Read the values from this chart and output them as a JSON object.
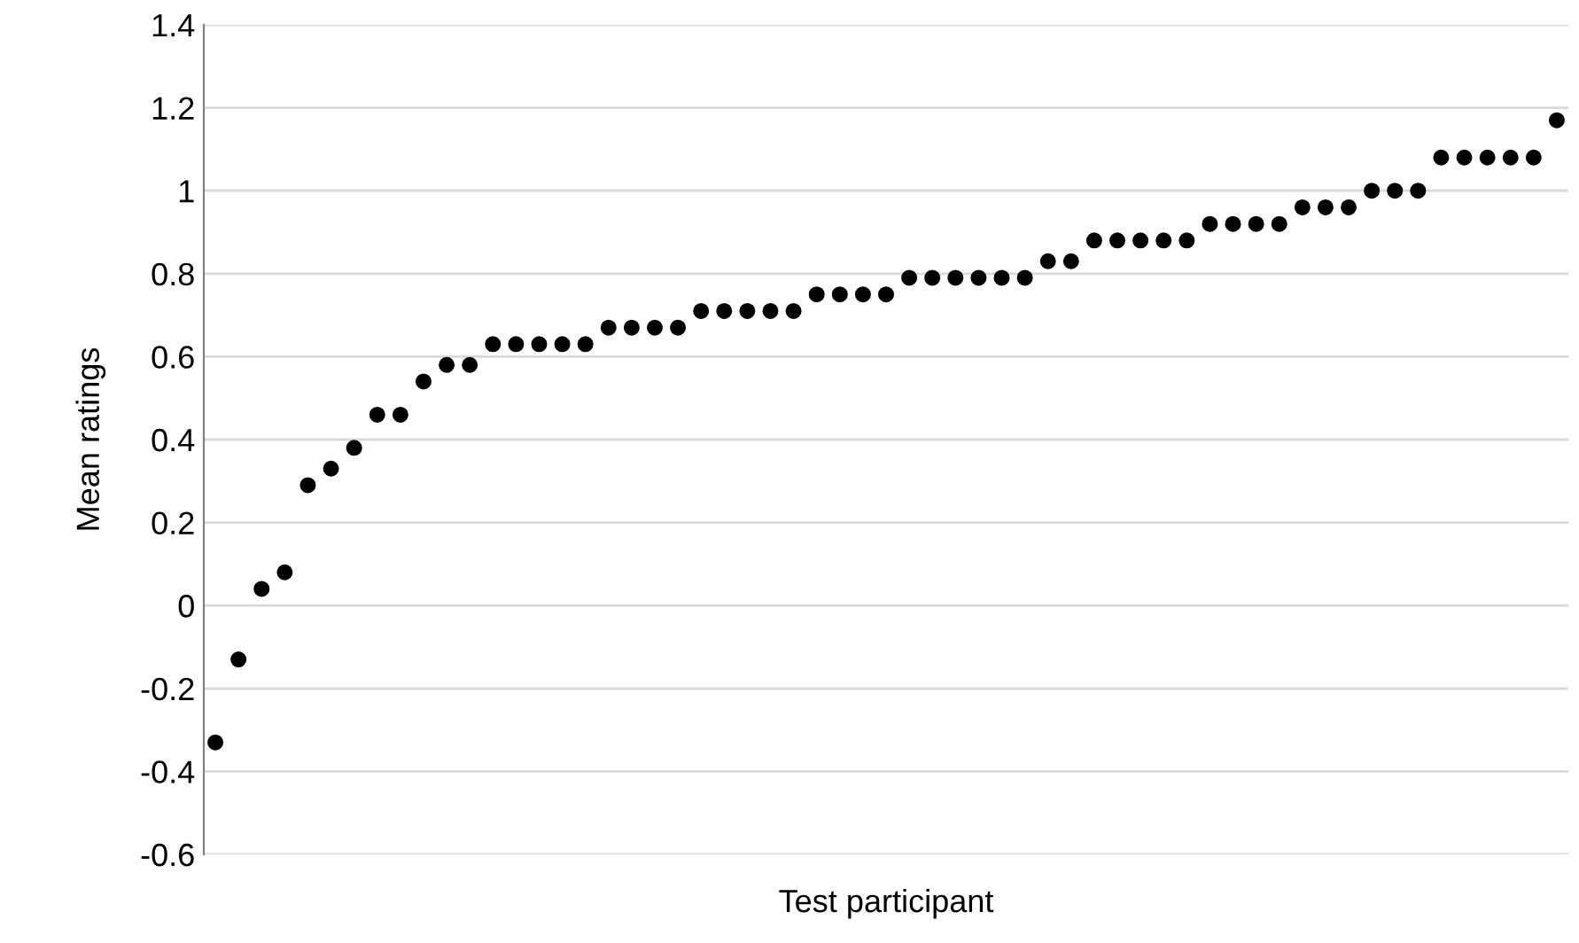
{
  "chart_data": {
    "type": "scatter",
    "xlabel": "Test participant",
    "ylabel": "Mean ratings",
    "categories": [
      null,
      null,
      null,
      null,
      null,
      null,
      null,
      null,
      null,
      null,
      null,
      null,
      null,
      null,
      null,
      null,
      null,
      null,
      null,
      null,
      null,
      null,
      null,
      null,
      null,
      null,
      null,
      null,
      null,
      null,
      null,
      null,
      null,
      null,
      null,
      null,
      null,
      null,
      null,
      null,
      null,
      null,
      null,
      null,
      null,
      null,
      null,
      null,
      null,
      null,
      null,
      null,
      null,
      null,
      null,
      null,
      null,
      null,
      null
    ],
    "series": [
      {
        "color": "#000000",
        "values": [
          -0.33,
          -0.13,
          0.04,
          0.08,
          0.29,
          0.33,
          0.38,
          0.46,
          0.46,
          0.54,
          0.58,
          0.58,
          0.63,
          0.63,
          0.63,
          0.63,
          0.63,
          0.67,
          0.67,
          0.67,
          0.67,
          0.71,
          0.71,
          0.71,
          0.71,
          0.71,
          0.75,
          0.75,
          0.75,
          0.75,
          0.79,
          0.79,
          0.79,
          0.79,
          0.79,
          0.79,
          0.83,
          0.83,
          0.88,
          0.88,
          0.88,
          0.88,
          0.88,
          0.92,
          0.92,
          0.92,
          0.92,
          0.96,
          0.96,
          0.96,
          1.0,
          1.0,
          1.0,
          1.08,
          1.08,
          1.08,
          1.08,
          1.08,
          1.17
        ]
      }
    ],
    "ylim": [
      -0.6,
      1.4
    ],
    "yticks": [
      -0.6,
      -0.4,
      -0.2,
      0,
      0.2,
      0.4,
      0.6,
      0.8,
      1,
      1.2,
      1.4
    ],
    "grid": "y",
    "marker": "circle",
    "tick_labels": "y"
  }
}
